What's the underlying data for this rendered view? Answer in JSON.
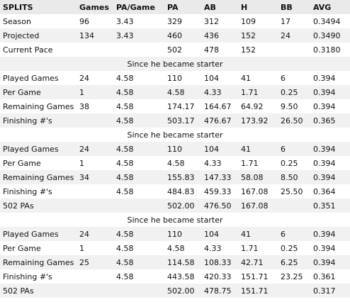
{
  "columns": [
    "SPLITS",
    "Games",
    "PA/Game",
    "PA",
    "AB",
    "H",
    "BB",
    "AVG"
  ],
  "top_rows": [
    [
      "Season",
      "96",
      "3.43",
      "329",
      "312",
      "109",
      "17",
      "0.3494"
    ],
    [
      "Projected",
      "134",
      "3.43",
      "460",
      "436",
      "152",
      "24",
      "0.3490"
    ],
    [
      "Current Pace",
      "",
      "",
      "502",
      "478",
      "152",
      "",
      "0.3180"
    ]
  ],
  "sections": [
    {
      "title": "Since he became starter",
      "rows": [
        [
          "Played Games",
          "24",
          "4.58",
          "110",
          "104",
          "41",
          "6",
          "0.394"
        ],
        [
          "Per Game",
          "1",
          "4.58",
          "4.58",
          "4.33",
          "1.71",
          "0.25",
          "0.394"
        ],
        [
          "Remaining Games",
          "38",
          "4.58",
          "174.17",
          "164.67",
          "64.92",
          "9.50",
          "0.394"
        ],
        [
          "Finishing #'s",
          "",
          "4.58",
          "503.17",
          "476.67",
          "173.92",
          "26.50",
          "0.365"
        ]
      ]
    },
    {
      "title": "Since he became starter",
      "rows": [
        [
          "Played Games",
          "24",
          "4.58",
          "110",
          "104",
          "41",
          "6",
          "0.394"
        ],
        [
          "Per Game",
          "1",
          "4.58",
          "4.58",
          "4.33",
          "1.71",
          "0.25",
          "0.394"
        ],
        [
          "Remaining Games",
          "34",
          "4.58",
          "155.83",
          "147.33",
          "58.08",
          "8.50",
          "0.394"
        ],
        [
          "Finishing #'s",
          "",
          "4.58",
          "484.83",
          "459.33",
          "167.08",
          "25.50",
          "0.364"
        ],
        [
          "502 PAs",
          "",
          "",
          "502.00",
          "476.50",
          "167.08",
          "",
          "0.351"
        ]
      ]
    },
    {
      "title": "Since he became starter",
      "rows": [
        [
          "Played Games",
          "24",
          "4.58",
          "110",
          "104",
          "41",
          "6",
          "0.394"
        ],
        [
          "Per Game",
          "1",
          "4.58",
          "4.58",
          "4.33",
          "1.71",
          "0.25",
          "0.394"
        ],
        [
          "Remaining Games",
          "25",
          "4.58",
          "114.58",
          "108.33",
          "42.71",
          "6.25",
          "0.394"
        ],
        [
          "Finishing #'s",
          "",
          "4.58",
          "443.58",
          "420.33",
          "151.71",
          "23.25",
          "0.361"
        ],
        [
          "502 PAs",
          "",
          "",
          "502.00",
          "478.75",
          "151.71",
          "",
          "0.317"
        ]
      ]
    }
  ]
}
